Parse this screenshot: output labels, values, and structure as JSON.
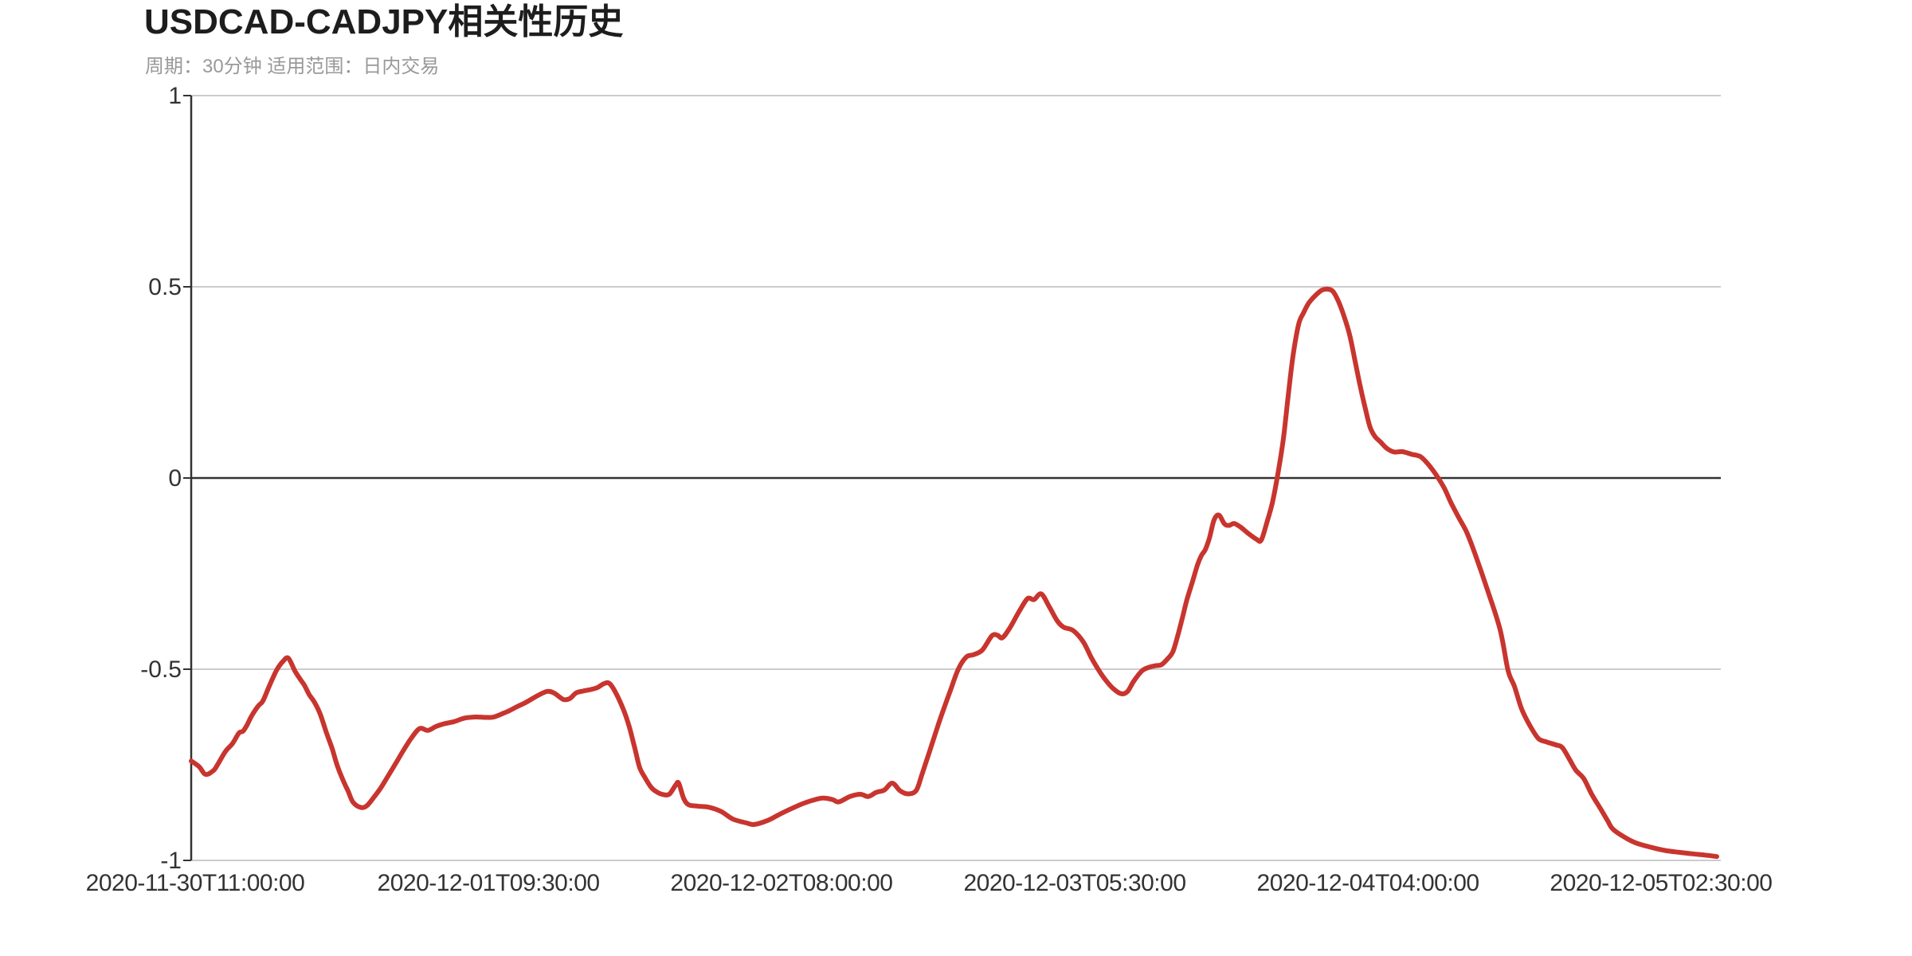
{
  "header": {
    "title": "USDCAD-CADJPY相关性历史",
    "subtitle": "周期：30分钟 适用范围：日内交易"
  },
  "colors": {
    "line": "#c8352e",
    "grid": "#cccccc",
    "zero_line": "#333333",
    "axis": "#333333",
    "tick": "#333333",
    "axis_label": "#333333",
    "title": "#1d1d1d",
    "subtitle": "#999999",
    "background": "#ffffff"
  },
  "chart_data": {
    "type": "line",
    "title": "USDCAD-CADJPY相关性历史",
    "subtitle": "周期：30分钟 适用范围：日内交易",
    "grid": true,
    "legend": false,
    "ylim": [
      -1,
      1
    ],
    "y_axis": {
      "ticks": [
        1,
        0.5,
        0,
        -0.5,
        -1
      ],
      "tick_labels": [
        "1",
        "0.5",
        "0",
        "-0.5",
        "-1"
      ],
      "zero_line_emphasized": true
    },
    "x_axis": {
      "unit": "fraction of x-axis (0 = left edge, 1 = right edge)",
      "tick_labels": [
        "2020-11-30T11:00:00",
        "2020-12-01T09:30:00",
        "2020-12-02T08:00:00",
        "2020-12-03T05:30:00",
        "2020-12-04T04:00:00",
        "2020-12-05T02:30:00"
      ],
      "tick_positions": [
        0.0026,
        0.1943,
        0.3859,
        0.5776,
        0.7693,
        0.9609
      ],
      "interval_minutes": 30
    },
    "series": {
      "x_unit": "fraction of x-axis (0 = left edge, 1 = right edge)",
      "y_unit": "correlation coefficient",
      "points": [
        [
          0.0,
          -0.74
        ],
        [
          0.0052,
          -0.755
        ],
        [
          0.0094,
          -0.775
        ],
        [
          0.0146,
          -0.765
        ],
        [
          0.0172,
          -0.75
        ],
        [
          0.0224,
          -0.715
        ],
        [
          0.0271,
          -0.694
        ],
        [
          0.0312,
          -0.667
        ],
        [
          0.0339,
          -0.662
        ],
        [
          0.0365,
          -0.646
        ],
        [
          0.0391,
          -0.625
        ],
        [
          0.0417,
          -0.608
        ],
        [
          0.0443,
          -0.594
        ],
        [
          0.0469,
          -0.583
        ],
        [
          0.0505,
          -0.549
        ],
        [
          0.0536,
          -0.521
        ],
        [
          0.0562,
          -0.5
        ],
        [
          0.0599,
          -0.48
        ],
        [
          0.0635,
          -0.471
        ],
        [
          0.0677,
          -0.504
        ],
        [
          0.0714,
          -0.527
        ],
        [
          0.074,
          -0.542
        ],
        [
          0.0771,
          -0.566
        ],
        [
          0.0807,
          -0.587
        ],
        [
          0.0844,
          -0.618
        ],
        [
          0.0885,
          -0.667
        ],
        [
          0.0922,
          -0.708
        ],
        [
          0.0953,
          -0.75
        ],
        [
          0.099,
          -0.788
        ],
        [
          0.1026,
          -0.819
        ],
        [
          0.1057,
          -0.847
        ],
        [
          0.1104,
          -0.861
        ],
        [
          0.1146,
          -0.858
        ],
        [
          0.1198,
          -0.833
        ],
        [
          0.124,
          -0.81
        ],
        [
          0.1286,
          -0.78
        ],
        [
          0.1339,
          -0.745
        ],
        [
          0.1391,
          -0.71
        ],
        [
          0.1443,
          -0.678
        ],
        [
          0.1495,
          -0.655
        ],
        [
          0.1547,
          -0.66
        ],
        [
          0.1599,
          -0.65
        ],
        [
          0.1651,
          -0.643
        ],
        [
          0.1719,
          -0.637
        ],
        [
          0.1786,
          -0.628
        ],
        [
          0.1859,
          -0.625
        ],
        [
          0.1927,
          -0.626
        ],
        [
          0.1979,
          -0.625
        ],
        [
          0.2042,
          -0.615
        ],
        [
          0.2083,
          -0.608
        ],
        [
          0.2135,
          -0.597
        ],
        [
          0.2187,
          -0.587
        ],
        [
          0.2266,
          -0.569
        ],
        [
          0.2328,
          -0.558
        ],
        [
          0.2375,
          -0.563
        ],
        [
          0.2432,
          -0.579
        ],
        [
          0.2474,
          -0.577
        ],
        [
          0.2516,
          -0.562
        ],
        [
          0.2562,
          -0.557
        ],
        [
          0.2615,
          -0.553
        ],
        [
          0.2656,
          -0.548
        ],
        [
          0.2698,
          -0.538
        ],
        [
          0.2734,
          -0.537
        ],
        [
          0.2776,
          -0.562
        ],
        [
          0.2828,
          -0.608
        ],
        [
          0.2865,
          -0.652
        ],
        [
          0.2901,
          -0.708
        ],
        [
          0.2932,
          -0.757
        ],
        [
          0.2969,
          -0.785
        ],
        [
          0.3005,
          -0.808
        ],
        [
          0.3036,
          -0.819
        ],
        [
          0.3078,
          -0.827
        ],
        [
          0.3125,
          -0.827
        ],
        [
          0.3167,
          -0.803
        ],
        [
          0.3187,
          -0.798
        ],
        [
          0.3219,
          -0.837
        ],
        [
          0.325,
          -0.854
        ],
        [
          0.3307,
          -0.858
        ],
        [
          0.3385,
          -0.861
        ],
        [
          0.3464,
          -0.872
        ],
        [
          0.3542,
          -0.892
        ],
        [
          0.363,
          -0.902
        ],
        [
          0.3682,
          -0.906
        ],
        [
          0.3766,
          -0.896
        ],
        [
          0.3839,
          -0.881
        ],
        [
          0.3906,
          -0.868
        ],
        [
          0.3995,
          -0.852
        ],
        [
          0.4062,
          -0.843
        ],
        [
          0.413,
          -0.837
        ],
        [
          0.4193,
          -0.841
        ],
        [
          0.4234,
          -0.847
        ],
        [
          0.4307,
          -0.833
        ],
        [
          0.4375,
          -0.827
        ],
        [
          0.4427,
          -0.833
        ],
        [
          0.4479,
          -0.822
        ],
        [
          0.4531,
          -0.816
        ],
        [
          0.4583,
          -0.798
        ],
        [
          0.4635,
          -0.818
        ],
        [
          0.4687,
          -0.826
        ],
        [
          0.474,
          -0.817
        ],
        [
          0.4776,
          -0.777
        ],
        [
          0.4828,
          -0.714
        ],
        [
          0.4896,
          -0.631
        ],
        [
          0.4964,
          -0.555
        ],
        [
          0.5016,
          -0.499
        ],
        [
          0.5068,
          -0.468
        ],
        [
          0.5115,
          -0.462
        ],
        [
          0.5172,
          -0.45
        ],
        [
          0.5234,
          -0.413
        ],
        [
          0.5271,
          -0.411
        ],
        [
          0.5302,
          -0.418
        ],
        [
          0.5349,
          -0.394
        ],
        [
          0.5417,
          -0.346
        ],
        [
          0.5469,
          -0.315
        ],
        [
          0.551,
          -0.318
        ],
        [
          0.5557,
          -0.303
        ],
        [
          0.5609,
          -0.336
        ],
        [
          0.5661,
          -0.373
        ],
        [
          0.5703,
          -0.39
        ],
        [
          0.5766,
          -0.399
        ],
        [
          0.5833,
          -0.429
        ],
        [
          0.5885,
          -0.47
        ],
        [
          0.5937,
          -0.505
        ],
        [
          0.5979,
          -0.529
        ],
        [
          0.6026,
          -0.55
        ],
        [
          0.6078,
          -0.564
        ],
        [
          0.612,
          -0.559
        ],
        [
          0.6161,
          -0.532
        ],
        [
          0.6214,
          -0.505
        ],
        [
          0.6255,
          -0.496
        ],
        [
          0.6302,
          -0.491
        ],
        [
          0.6344,
          -0.488
        ],
        [
          0.6385,
          -0.472
        ],
        [
          0.6417,
          -0.455
        ],
        [
          0.6448,
          -0.415
        ],
        [
          0.6479,
          -0.367
        ],
        [
          0.651,
          -0.318
        ],
        [
          0.6547,
          -0.27
        ],
        [
          0.6578,
          -0.228
        ],
        [
          0.6604,
          -0.203
        ],
        [
          0.663,
          -0.187
        ],
        [
          0.6656,
          -0.158
        ],
        [
          0.6687,
          -0.11
        ],
        [
          0.6719,
          -0.097
        ],
        [
          0.6755,
          -0.12
        ],
        [
          0.6786,
          -0.124
        ],
        [
          0.6818,
          -0.119
        ],
        [
          0.6859,
          -0.128
        ],
        [
          0.6911,
          -0.145
        ],
        [
          0.6964,
          -0.16
        ],
        [
          0.6995,
          -0.163
        ],
        [
          0.7031,
          -0.118
        ],
        [
          0.7068,
          -0.065
        ],
        [
          0.7104,
          0.01
        ],
        [
          0.7141,
          0.105
        ],
        [
          0.7172,
          0.215
        ],
        [
          0.7203,
          0.319
        ],
        [
          0.724,
          0.402
        ],
        [
          0.7271,
          0.431
        ],
        [
          0.7307,
          0.458
        ],
        [
          0.7349,
          0.477
        ],
        [
          0.7391,
          0.491
        ],
        [
          0.7427,
          0.494
        ],
        [
          0.7464,
          0.488
        ],
        [
          0.75,
          0.462
        ],
        [
          0.7536,
          0.424
        ],
        [
          0.7573,
          0.375
        ],
        [
          0.7609,
          0.306
        ],
        [
          0.7641,
          0.243
        ],
        [
          0.7677,
          0.18
        ],
        [
          0.7708,
          0.132
        ],
        [
          0.774,
          0.108
        ],
        [
          0.7776,
          0.094
        ],
        [
          0.7818,
          0.077
        ],
        [
          0.7865,
          0.068
        ],
        [
          0.7917,
          0.069
        ],
        [
          0.7979,
          0.062
        ],
        [
          0.8036,
          0.056
        ],
        [
          0.8089,
          0.035
        ],
        [
          0.8141,
          0.007
        ],
        [
          0.8193,
          -0.027
        ],
        [
          0.8234,
          -0.063
        ],
        [
          0.8286,
          -0.103
        ],
        [
          0.8339,
          -0.142
        ],
        [
          0.8391,
          -0.196
        ],
        [
          0.8474,
          -0.292
        ],
        [
          0.8557,
          -0.396
        ],
        [
          0.8609,
          -0.503
        ],
        [
          0.8651,
          -0.545
        ],
        [
          0.8698,
          -0.604
        ],
        [
          0.875,
          -0.646
        ],
        [
          0.8807,
          -0.681
        ],
        [
          0.8859,
          -0.69
        ],
        [
          0.8922,
          -0.698
        ],
        [
          0.8964,
          -0.705
        ],
        [
          0.901,
          -0.735
        ],
        [
          0.9052,
          -0.764
        ],
        [
          0.9104,
          -0.786
        ],
        [
          0.9156,
          -0.827
        ],
        [
          0.9208,
          -0.861
        ],
        [
          0.926,
          -0.896
        ],
        [
          0.9292,
          -0.917
        ],
        [
          0.9365,
          -0.938
        ],
        [
          0.9443,
          -0.954
        ],
        [
          0.9547,
          -0.966
        ],
        [
          0.9635,
          -0.974
        ],
        [
          0.9729,
          -0.979
        ],
        [
          0.9818,
          -0.983
        ],
        [
          0.9896,
          -0.986
        ],
        [
          0.9974,
          -0.99
        ]
      ]
    }
  }
}
